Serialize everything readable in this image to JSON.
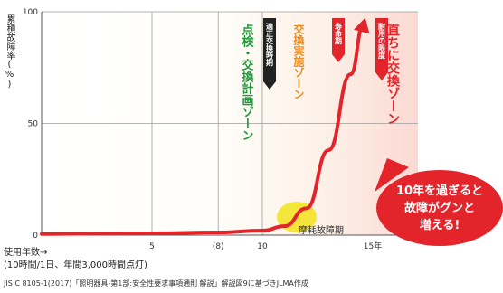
{
  "chart_data": {
    "type": "line",
    "ylabel": "累積故障率(%)",
    "xlabel_line1": "使用年数→",
    "xlabel_line2": "(10時間/1日、年間3,000時間点灯)",
    "ylim": [
      0,
      100
    ],
    "xlim": [
      0,
      15
    ],
    "y_ticks": [
      0,
      50,
      100
    ],
    "x_ticks": [
      {
        "value": 5,
        "label": "5"
      },
      {
        "value": 8,
        "label": "(8)"
      },
      {
        "value": 10,
        "label": "10"
      },
      {
        "value": 15,
        "label": "15年"
      }
    ],
    "series": [
      {
        "color": "#e3242b",
        "points": [
          {
            "x": 0,
            "y": 0.5
          },
          {
            "x": 5,
            "y": 0.8
          },
          {
            "x": 8,
            "y": 1.2
          },
          {
            "x": 10,
            "y": 2
          },
          {
            "x": 11,
            "y": 4
          },
          {
            "x": 12,
            "y": 12
          },
          {
            "x": 13,
            "y": 38
          },
          {
            "x": 14,
            "y": 72
          },
          {
            "x": 14.6,
            "y": 95
          }
        ]
      }
    ],
    "zones": [
      {
        "label": "点検・交換計画ゾーン",
        "x_start": 8,
        "x_end": 10,
        "color": "#1e9a3a"
      },
      {
        "label": "交換実施ゾーン",
        "x_start": 10,
        "x_end": 12.5,
        "color": "#f08a1c"
      },
      {
        "label": "直ちに交換ゾーン",
        "x_start": 12.5,
        "x_end": 15.5,
        "color": "#e3242b"
      }
    ],
    "markers": [
      {
        "label": "適正交換時期",
        "x": 10,
        "color": "#222222"
      },
      {
        "label": "寿命期",
        "x": 12.5,
        "color": "#e3242b"
      },
      {
        "label": "耐用の限度",
        "x": 14,
        "color": "#e3242b"
      }
    ],
    "region_label": "摩耗故障期",
    "callout": "10年を過ぎると故障がグンと増える!",
    "callout_lines": [
      "10年を過ぎると",
      "故障がグンと",
      "増える!"
    ],
    "grid": true
  },
  "source_note": "JIS C 8105-1(2017)「照明器具-第1部:安全性要求事項通則 解説」解説図9に基づきJLMA作成",
  "colors": {
    "curve": "#e3242b",
    "callout": "#e3242b",
    "highlight": "#f1e000",
    "grid": "#9c9c9c",
    "axis": "#555555"
  }
}
